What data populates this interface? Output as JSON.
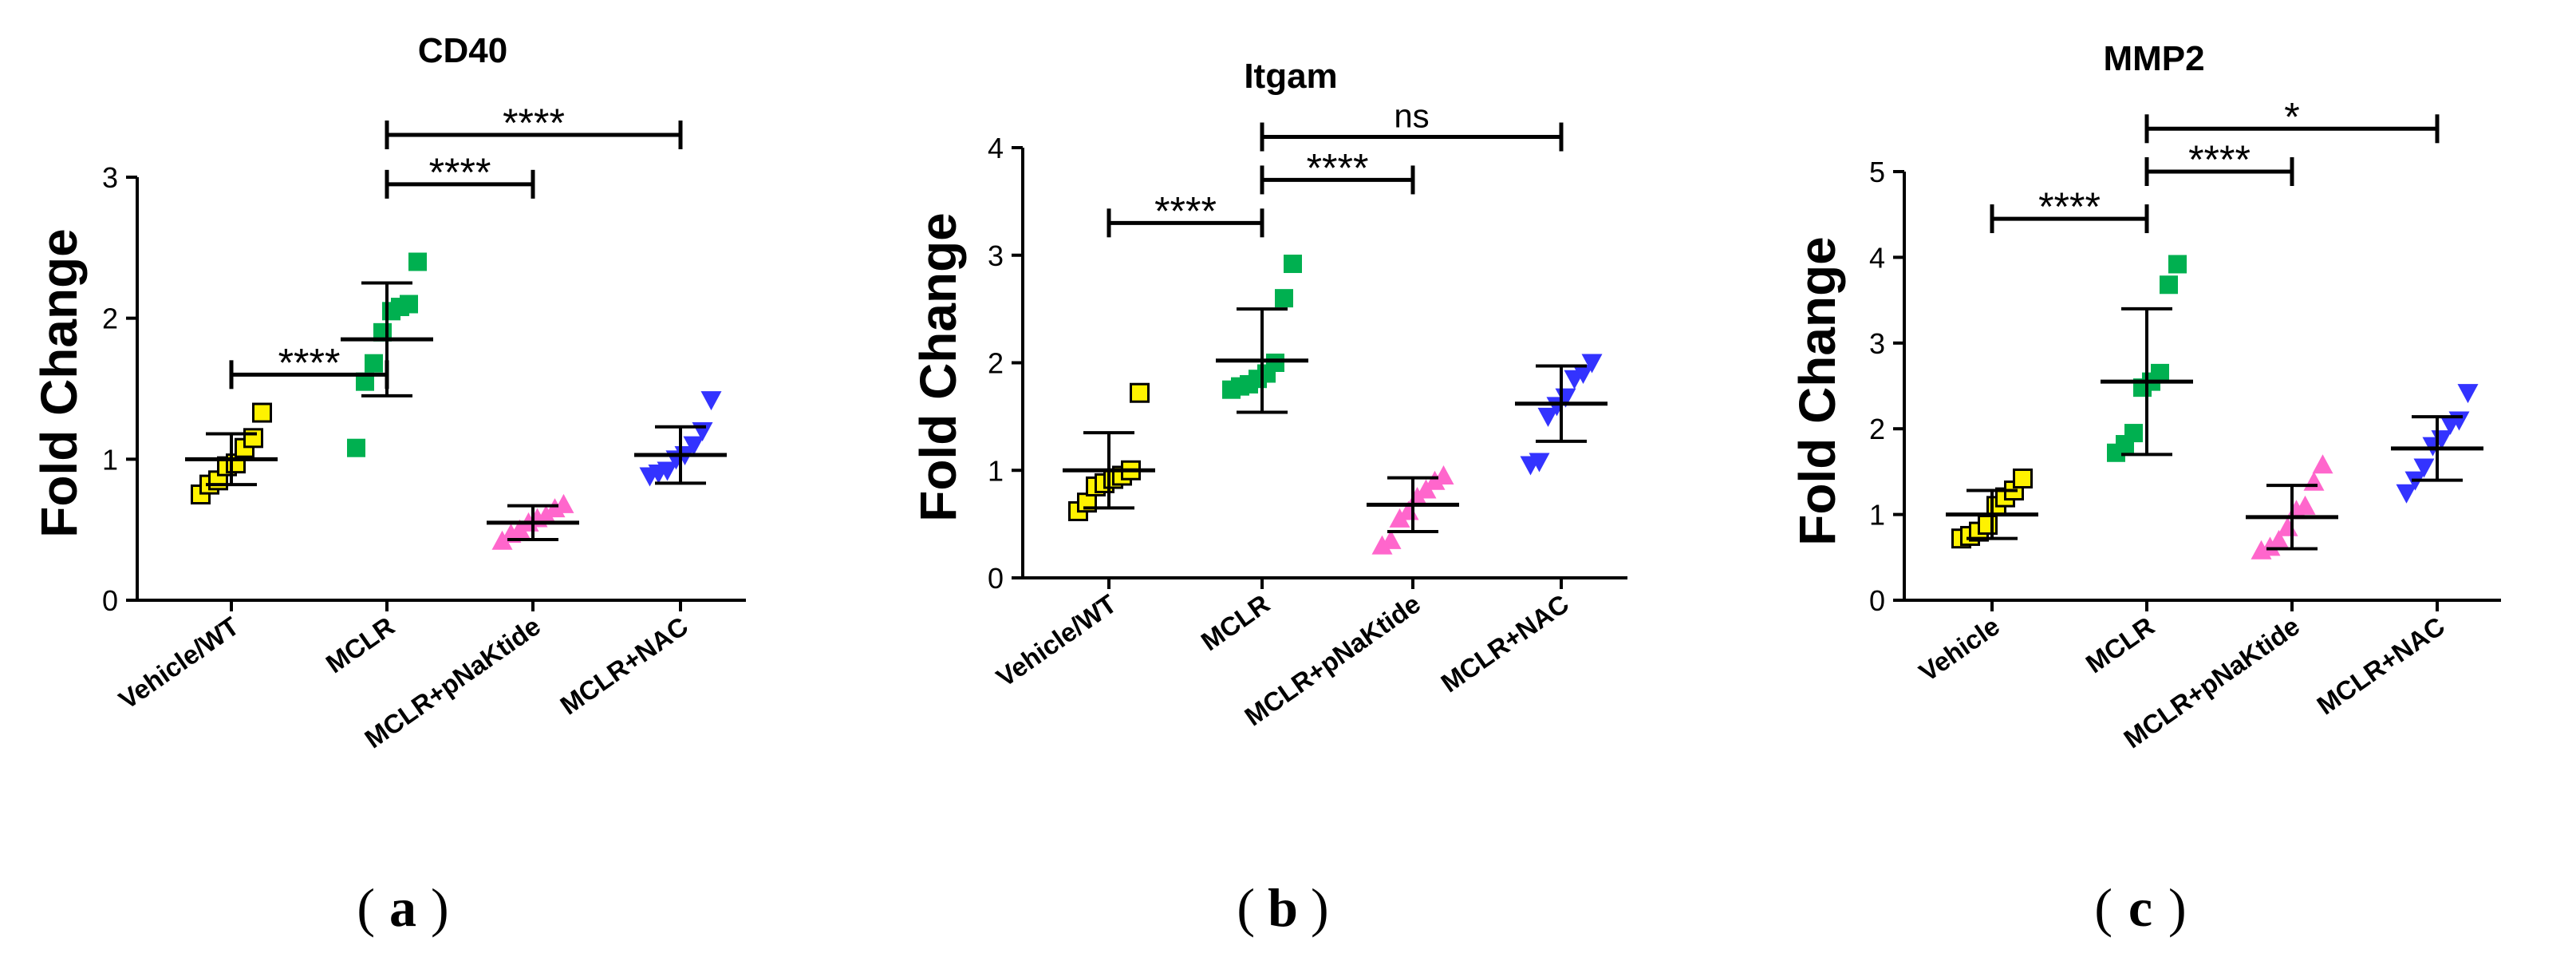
{
  "chart_data": [
    {
      "type": "scatter",
      "title": "CD40",
      "ylabel": "Fold Change",
      "xlabel": "",
      "panel_label": "a",
      "ylim": [
        0,
        3
      ],
      "yticks": [
        0,
        1,
        2,
        3
      ],
      "categories": [
        "Vehicle/WT",
        "MCLR",
        "MCLR+pNaKtide",
        "MCLR+NAC"
      ],
      "series": [
        {
          "name": "Vehicle/WT",
          "marker": "square",
          "color": "#FFF200",
          "points": [
            0.75,
            0.82,
            0.85,
            0.95,
            0.97,
            1.08,
            1.15,
            1.33
          ],
          "mean": 1.0,
          "sd": 0.18
        },
        {
          "name": "MCLR",
          "marker": "square",
          "color": "#00B050",
          "points": [
            1.08,
            1.55,
            1.68,
            1.9,
            2.05,
            2.08,
            2.1,
            2.4
          ],
          "mean": 1.85,
          "sd": 0.4
        },
        {
          "name": "MCLR+pNaKtide",
          "marker": "triangle-up",
          "color": "#FF66CC",
          "points": [
            0.42,
            0.47,
            0.5,
            0.55,
            0.58,
            0.6,
            0.65,
            0.68
          ],
          "mean": 0.55,
          "sd": 0.12
        },
        {
          "name": "MCLR+NAC",
          "marker": "triangle-down",
          "color": "#3333FF",
          "points": [
            0.88,
            0.9,
            0.92,
            1.0,
            1.03,
            1.1,
            1.2,
            1.42
          ],
          "mean": 1.03,
          "sd": 0.2
        }
      ],
      "significance": [
        {
          "from": 0,
          "to": 1,
          "label": "****",
          "level": 1.6
        },
        {
          "from": 1,
          "to": 2,
          "label": "****",
          "level": 2.95
        },
        {
          "from": 1,
          "to": 3,
          "label": "****",
          "level": 3.3
        }
      ]
    },
    {
      "type": "scatter",
      "title": "Itgam",
      "ylabel": "Fold Change",
      "xlabel": "",
      "panel_label": "b",
      "ylim": [
        0,
        4
      ],
      "yticks": [
        0,
        1,
        2,
        3,
        4
      ],
      "categories": [
        "Vehicle/WT",
        "MCLR",
        "MCLR+pNaKtide",
        "MCLR+NAC"
      ],
      "series": [
        {
          "name": "Vehicle/WT",
          "marker": "square",
          "color": "#FFF200",
          "points": [
            0.62,
            0.7,
            0.85,
            0.88,
            0.92,
            0.95,
            1.0,
            1.72
          ],
          "mean": 1.0,
          "sd": 0.35
        },
        {
          "name": "MCLR",
          "marker": "square",
          "color": "#00B050",
          "points": [
            1.75,
            1.78,
            1.8,
            1.85,
            1.9,
            2.0,
            2.6,
            2.92
          ],
          "mean": 2.02,
          "sd": 0.48
        },
        {
          "name": "MCLR+pNaKtide",
          "marker": "triangle-up",
          "color": "#FF66CC",
          "points": [
            0.3,
            0.35,
            0.55,
            0.62,
            0.75,
            0.82,
            0.9,
            0.95
          ],
          "mean": 0.68,
          "sd": 0.25
        },
        {
          "name": "MCLR+NAC",
          "marker": "triangle-down",
          "color": "#3333FF",
          "points": [
            1.05,
            1.08,
            1.5,
            1.6,
            1.68,
            1.85,
            1.9,
            2.0
          ],
          "mean": 1.62,
          "sd": 0.35
        }
      ],
      "significance": [
        {
          "from": 0,
          "to": 1,
          "label": "****",
          "level": 3.3
        },
        {
          "from": 1,
          "to": 2,
          "label": "****",
          "level": 3.7
        },
        {
          "from": 1,
          "to": 3,
          "label": "ns",
          "level": 4.1
        }
      ]
    },
    {
      "type": "scatter",
      "title": "MMP2",
      "ylabel": "Fold Change",
      "xlabel": "",
      "panel_label": "c",
      "ylim": [
        0,
        5
      ],
      "yticks": [
        0,
        1,
        2,
        3,
        4,
        5
      ],
      "categories": [
        "Vehicle",
        "MCLR",
        "MCLR+pNaKtide",
        "MCLR+NAC"
      ],
      "series": [
        {
          "name": "Vehicle",
          "marker": "square",
          "color": "#FFF200",
          "points": [
            0.72,
            0.75,
            0.8,
            0.88,
            1.1,
            1.2,
            1.28,
            1.42
          ],
          "mean": 1.0,
          "sd": 0.28
        },
        {
          "name": "MCLR",
          "marker": "square",
          "color": "#00B050",
          "points": [
            1.72,
            1.82,
            1.95,
            2.48,
            2.55,
            2.65,
            3.68,
            3.92
          ],
          "mean": 2.55,
          "sd": 0.85
        },
        {
          "name": "MCLR+pNaKtide",
          "marker": "triangle-up",
          "color": "#FF66CC",
          "points": [
            0.58,
            0.62,
            0.7,
            0.85,
            1.05,
            1.1,
            1.38,
            1.58
          ],
          "mean": 0.97,
          "sd": 0.37
        },
        {
          "name": "MCLR+NAC",
          "marker": "triangle-down",
          "color": "#3333FF",
          "points": [
            1.25,
            1.4,
            1.55,
            1.8,
            1.88,
            2.05,
            2.1,
            2.42
          ],
          "mean": 1.77,
          "sd": 0.37
        }
      ],
      "significance": [
        {
          "from": 0,
          "to": 1,
          "label": "****",
          "level": 4.45
        },
        {
          "from": 1,
          "to": 2,
          "label": "****",
          "level": 5.0
        },
        {
          "from": 1,
          "to": 3,
          "label": "*",
          "level": 5.5
        }
      ]
    }
  ]
}
